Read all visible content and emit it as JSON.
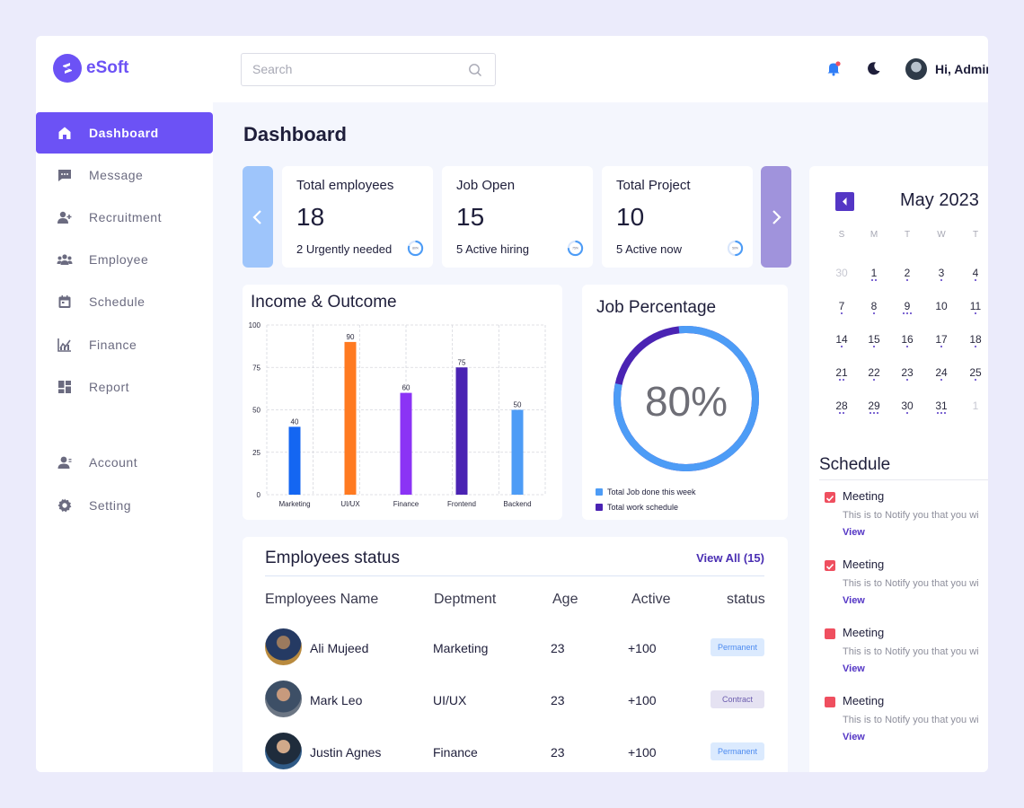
{
  "app": {
    "brand": "eSoft",
    "greeting": "Hi, Admin"
  },
  "search": {
    "placeholder": "Search"
  },
  "sidebar": {
    "items": [
      {
        "label": "Dashboard",
        "icon": "home-icon"
      },
      {
        "label": "Message",
        "icon": "chat-icon"
      },
      {
        "label": "Recruitment",
        "icon": "add-user-icon"
      },
      {
        "label": "Employee",
        "icon": "group-icon"
      },
      {
        "label": "Schedule",
        "icon": "calendar-icon"
      },
      {
        "label": "Finance",
        "icon": "chart-icon"
      },
      {
        "label": "Report",
        "icon": "grid-icon"
      }
    ],
    "bottom": [
      {
        "label": "Account",
        "icon": "user-icon"
      },
      {
        "label": "Setting",
        "icon": "gear-icon"
      }
    ]
  },
  "page": {
    "title": "Dashboard"
  },
  "stats": [
    {
      "title": "Total employees",
      "value": "18",
      "sub": "2 Urgently needed",
      "ring": "80%",
      "pct": 80
    },
    {
      "title": "Job Open",
      "value": "15",
      "sub": "5 Active hiring",
      "ring": "75%",
      "pct": 75
    },
    {
      "title": "Total Project",
      "value": "10",
      "sub": "5 Active now",
      "ring": "50%",
      "pct": 50
    }
  ],
  "income": {
    "title": "Income & Outcome"
  },
  "chart_data": {
    "type": "bar",
    "title": "Income & Outcome",
    "categories": [
      "Marketing",
      "UI/UX",
      "Finance",
      "Frontend",
      "Backend"
    ],
    "values": [
      40,
      90,
      60,
      75,
      50
    ],
    "ylim": [
      0,
      100
    ],
    "yticks": [
      0,
      25,
      50,
      75,
      100
    ],
    "colors": [
      "#1466f2",
      "#ff7a21",
      "#8b33f5",
      "#4a23b3",
      "#4d9cf6"
    ],
    "grid": true
  },
  "job": {
    "title": "Job Percentage",
    "value_label": "80%",
    "percent": 80,
    "legend": [
      {
        "label": "Total Job done this week",
        "color": "#4d9cf6"
      },
      {
        "label": "Total work schedule",
        "color": "#4a23b3"
      }
    ]
  },
  "calendar": {
    "title": "May 2023",
    "dow": [
      "S",
      "M",
      "T",
      "W",
      "T"
    ],
    "rows": [
      [
        {
          "d": "30",
          "m": true,
          "n": 0
        },
        {
          "d": "1",
          "n": 2
        },
        {
          "d": "2",
          "n": 1
        },
        {
          "d": "3",
          "n": 1
        },
        {
          "d": "4",
          "n": 1
        }
      ],
      [
        {
          "d": "7",
          "n": 1
        },
        {
          "d": "8",
          "n": 1
        },
        {
          "d": "9",
          "n": 3
        },
        {
          "d": "10",
          "n": 0
        },
        {
          "d": "11",
          "n": 1
        }
      ],
      [
        {
          "d": "14",
          "n": 1
        },
        {
          "d": "15",
          "n": 1
        },
        {
          "d": "16",
          "n": 1
        },
        {
          "d": "17",
          "n": 1
        },
        {
          "d": "18",
          "n": 1
        }
      ],
      [
        {
          "d": "21",
          "n": 2
        },
        {
          "d": "22",
          "n": 1
        },
        {
          "d": "23",
          "n": 1
        },
        {
          "d": "24",
          "n": 1
        },
        {
          "d": "25",
          "n": 1
        }
      ],
      [
        {
          "d": "28",
          "n": 2
        },
        {
          "d": "29",
          "n": 3
        },
        {
          "d": "30",
          "n": 1
        },
        {
          "d": "31",
          "n": 3
        },
        {
          "d": "1",
          "m": true,
          "n": 0
        }
      ]
    ]
  },
  "schedule": {
    "title": "Schedule",
    "items": [
      {
        "name": "Meeting",
        "desc": "This is to Notify you that you wi",
        "link": "View",
        "checked": true
      },
      {
        "name": "Meeting",
        "desc": "This is to Notify you that you wi",
        "link": "View",
        "checked": true
      },
      {
        "name": "Meeting",
        "desc": "This is to Notify you that you wi",
        "link": "View",
        "checked": false
      },
      {
        "name": "Meeting",
        "desc": "This is to Notify you that you wi",
        "link": "View",
        "checked": false
      }
    ]
  },
  "employees": {
    "title": "Employees status",
    "view_all": "View All (15)",
    "headers": [
      "Employees Name",
      "Deptment",
      "Age",
      "Active",
      "status"
    ],
    "rows": [
      {
        "name": "Ali Mujeed",
        "dept": "Marketing",
        "age": "23",
        "active": "+100",
        "status": "Permanent",
        "kind": "perm"
      },
      {
        "name": "Mark Leo",
        "dept": "UI/UX",
        "age": "23",
        "active": "+100",
        "status": "Contract",
        "kind": "cont"
      },
      {
        "name": "Justin Agnes",
        "dept": "Finance",
        "age": "23",
        "active": "+100",
        "status": "Permanent",
        "kind": "perm"
      }
    ]
  }
}
